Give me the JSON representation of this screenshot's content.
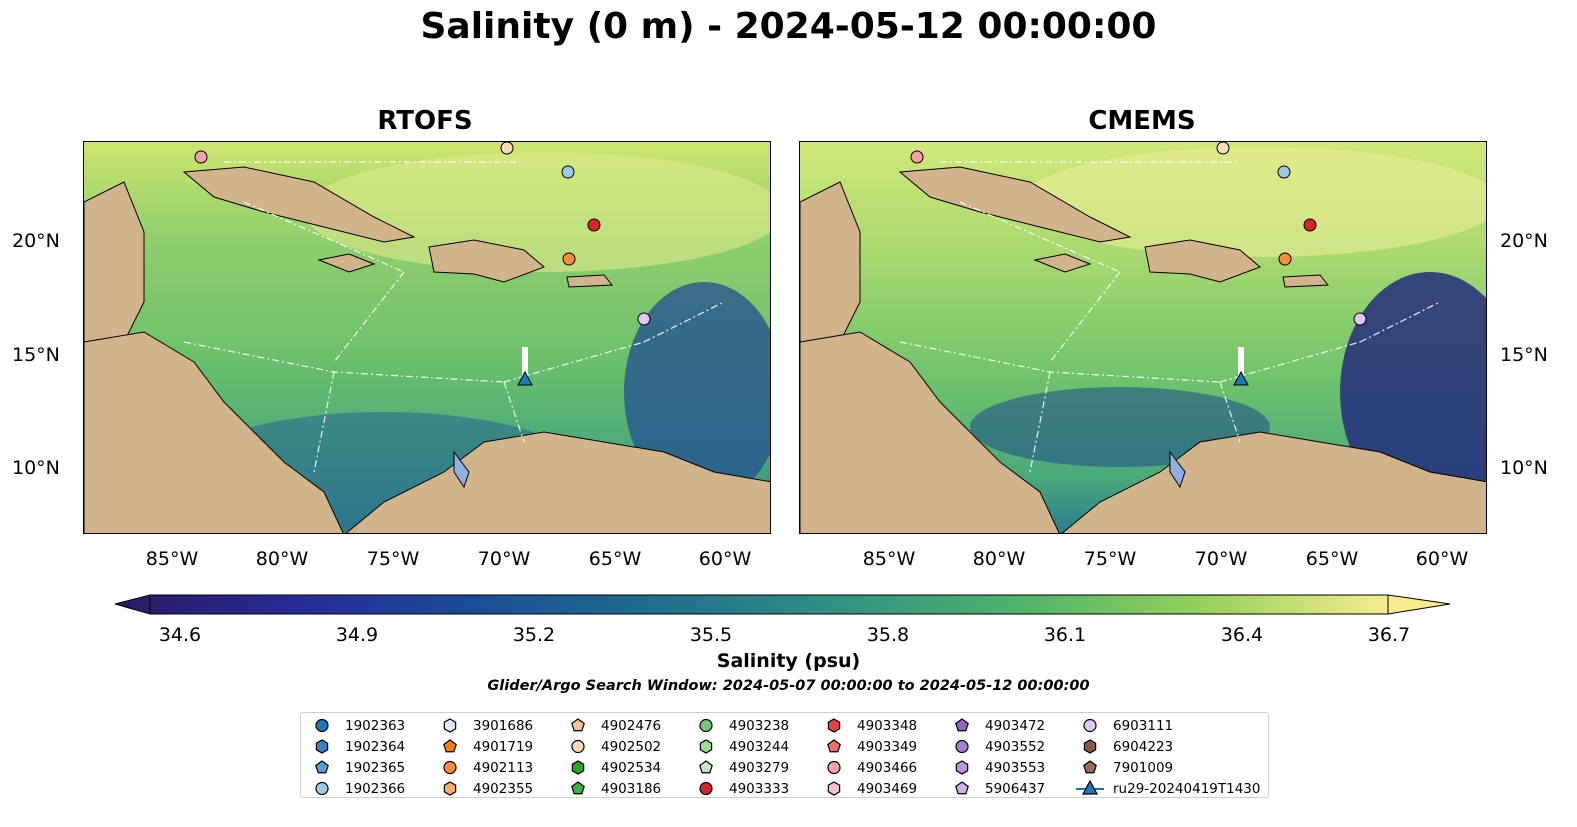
{
  "title": "Salinity (0 m) - 2024-05-12 00:00:00",
  "panels": [
    {
      "title": "RTOFS"
    },
    {
      "title": "CMEMS"
    }
  ],
  "lat_ticks": [
    "20°N",
    "15°N",
    "10°N"
  ],
  "lon_ticks": [
    "85°W",
    "80°W",
    "75°W",
    "70°W",
    "65°W",
    "60°W"
  ],
  "colorbar": {
    "label": "Salinity (psu)",
    "ticks": [
      "34.6",
      "34.9",
      "35.2",
      "35.5",
      "35.8",
      "36.1",
      "36.4",
      "36.7"
    ],
    "range": [
      34.6,
      36.7
    ],
    "colormap": "haline",
    "extend": "both"
  },
  "search_window": "Glider/Argo Search Window: 2024-05-07 00:00:00 to 2024-05-12 00:00:00",
  "colors": {
    "land": "#d2b48c",
    "rivers": "#9bb3d6",
    "lakes": "#8fb0e0"
  },
  "legend": [
    {
      "label": "1902363",
      "marker": "circle",
      "color": "#1f77b4"
    },
    {
      "label": "1902364",
      "marker": "hexagon",
      "color": "#3a7fc2"
    },
    {
      "label": "1902365",
      "marker": "pentagon",
      "color": "#5a9fd4"
    },
    {
      "label": "1902366",
      "marker": "circle",
      "color": "#9ecae1"
    },
    {
      "label": "3901686",
      "marker": "hexagon",
      "color": "#d6ecfa"
    },
    {
      "label": "4901719",
      "marker": "pentagon",
      "color": "#ff7f0e"
    },
    {
      "label": "4902113",
      "marker": "circle",
      "color": "#fd8d3c"
    },
    {
      "label": "4902355",
      "marker": "hexagon",
      "color": "#fdae6b"
    },
    {
      "label": "4902476",
      "marker": "pentagon",
      "color": "#fdc48f"
    },
    {
      "label": "4902502",
      "marker": "circle",
      "color": "#fdd9b5"
    },
    {
      "label": "4902534",
      "marker": "hexagon",
      "color": "#2ca02c"
    },
    {
      "label": "4903186",
      "marker": "pentagon",
      "color": "#41b041"
    },
    {
      "label": "4903238",
      "marker": "circle",
      "color": "#74c476"
    },
    {
      "label": "4903244",
      "marker": "hexagon",
      "color": "#a1d99b"
    },
    {
      "label": "4903279",
      "marker": "pentagon",
      "color": "#c7e9c0"
    },
    {
      "label": "4903333",
      "marker": "circle",
      "color": "#d62728"
    },
    {
      "label": "4903348",
      "marker": "hexagon",
      "color": "#e04444"
    },
    {
      "label": "4903349",
      "marker": "pentagon",
      "color": "#ef6f6f"
    },
    {
      "label": "4903466",
      "marker": "circle",
      "color": "#f4a3a3"
    },
    {
      "label": "4903469",
      "marker": "hexagon",
      "color": "#f8c6c6"
    },
    {
      "label": "4903472",
      "marker": "pentagon",
      "color": "#9467bd"
    },
    {
      "label": "4903552",
      "marker": "circle",
      "color": "#a57fcf"
    },
    {
      "label": "4903553",
      "marker": "hexagon",
      "color": "#b894de"
    },
    {
      "label": "5906437",
      "marker": "pentagon",
      "color": "#cbb0ec"
    },
    {
      "label": "6903111",
      "marker": "circle",
      "color": "#e2c6f4"
    },
    {
      "label": "6904223",
      "marker": "hexagon",
      "color": "#8c564b"
    },
    {
      "label": "7901009",
      "marker": "pentagon",
      "color": "#a0695a"
    },
    {
      "label": "ru29-20240419T1430",
      "marker": "triangle-line",
      "color": "#1f77b4"
    }
  ]
}
